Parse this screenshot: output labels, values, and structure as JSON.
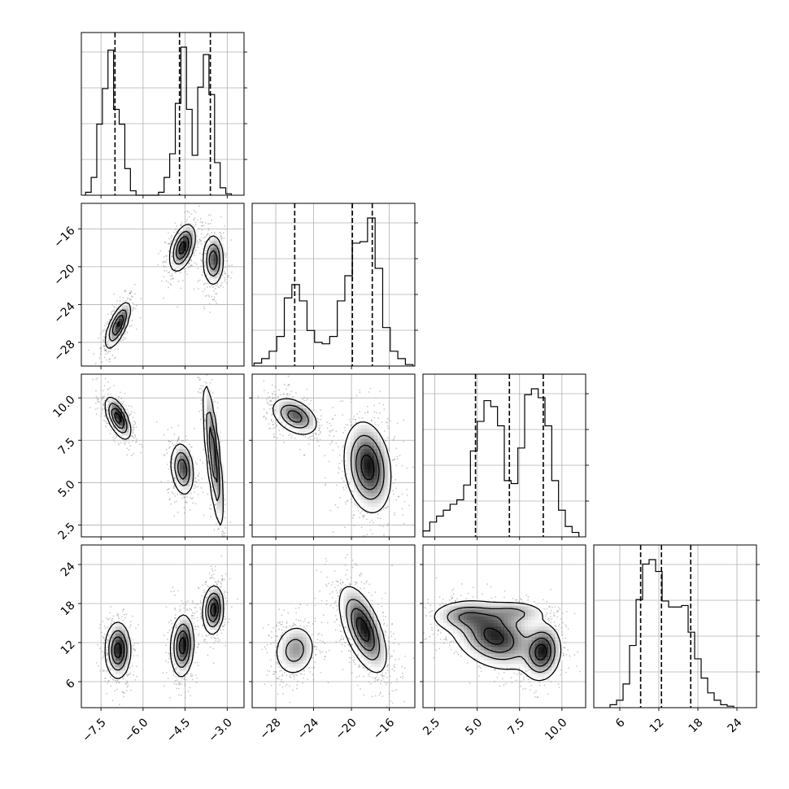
{
  "chart_data": {
    "type": "corner",
    "title": "",
    "params": [
      {
        "ticks": [
          "−7.5",
          "−6.0",
          "−4.5",
          "−3.0"
        ],
        "tick_values": [
          -7.5,
          -6.0,
          -4.5,
          -3.0
        ],
        "range": [
          -8.2,
          -2.4
        ],
        "quantiles": [
          -7.0,
          -4.7,
          -3.6
        ]
      },
      {
        "ticks": [
          "−28",
          "−24",
          "−20",
          "−16"
        ],
        "tick_values": [
          -28,
          -24,
          -20,
          -16
        ],
        "range": [
          -30.5,
          -13.3
        ],
        "quantiles": [
          -26.0,
          -19.9,
          -17.8
        ]
      },
      {
        "ticks": [
          "2.5",
          "5.0",
          "7.5",
          "10.0"
        ],
        "tick_values": [
          2.5,
          5.0,
          7.5,
          10.0
        ],
        "range": [
          1.8,
          11.4
        ],
        "quantiles": [
          4.9,
          6.9,
          8.9
        ]
      },
      {
        "ticks": [
          "6",
          "12",
          "18",
          "24"
        ],
        "tick_values": [
          6,
          12,
          18,
          24
        ],
        "range": [
          2.0,
          27.0
        ],
        "quantiles": [
          9.2,
          12.4,
          16.9
        ]
      }
    ],
    "histograms": [
      [
        {
          "x": -7.95,
          "y": 0.02
        },
        {
          "x": -7.75,
          "y": 0.12
        },
        {
          "x": -7.55,
          "y": 0.48
        },
        {
          "x": -7.35,
          "y": 0.72
        },
        {
          "x": -7.15,
          "y": 0.98
        },
        {
          "x": -6.95,
          "y": 0.58
        },
        {
          "x": -6.75,
          "y": 0.48
        },
        {
          "x": -6.55,
          "y": 0.18
        },
        {
          "x": -6.35,
          "y": 0.03
        },
        {
          "x": -6.15,
          "y": 0.0
        },
        {
          "x": -5.95,
          "y": 0.0
        },
        {
          "x": -5.75,
          "y": 0.0
        },
        {
          "x": -5.55,
          "y": 0.0
        },
        {
          "x": -5.35,
          "y": 0.02
        },
        {
          "x": -5.15,
          "y": 0.12
        },
        {
          "x": -4.95,
          "y": 0.28
        },
        {
          "x": -4.75,
          "y": 0.62
        },
        {
          "x": -4.55,
          "y": 1.0
        },
        {
          "x": -4.35,
          "y": 0.58
        },
        {
          "x": -4.15,
          "y": 0.27
        },
        {
          "x": -3.95,
          "y": 0.73
        },
        {
          "x": -3.75,
          "y": 0.95
        },
        {
          "x": -3.55,
          "y": 0.68
        },
        {
          "x": -3.35,
          "y": 0.22
        },
        {
          "x": -3.15,
          "y": 0.05
        },
        {
          "x": -2.95,
          "y": 0.01
        }
      ],
      [
        {
          "x": -29.9,
          "y": 0.02
        },
        {
          "x": -29.1,
          "y": 0.05
        },
        {
          "x": -28.3,
          "y": 0.1
        },
        {
          "x": -27.5,
          "y": 0.2
        },
        {
          "x": -26.7,
          "y": 0.46
        },
        {
          "x": -25.9,
          "y": 0.55
        },
        {
          "x": -25.1,
          "y": 0.44
        },
        {
          "x": -24.3,
          "y": 0.24
        },
        {
          "x": -23.5,
          "y": 0.16
        },
        {
          "x": -22.7,
          "y": 0.15
        },
        {
          "x": -21.9,
          "y": 0.2
        },
        {
          "x": -21.1,
          "y": 0.44
        },
        {
          "x": -20.3,
          "y": 0.61
        },
        {
          "x": -19.5,
          "y": 0.83
        },
        {
          "x": -18.7,
          "y": 0.84
        },
        {
          "x": -17.9,
          "y": 1.0
        },
        {
          "x": -17.1,
          "y": 0.66
        },
        {
          "x": -16.3,
          "y": 0.26
        },
        {
          "x": -15.5,
          "y": 0.1
        },
        {
          "x": -14.7,
          "y": 0.05
        },
        {
          "x": -13.9,
          "y": 0.01
        }
      ],
      [
        {
          "x": 2.0,
          "y": 0.04
        },
        {
          "x": 2.4,
          "y": 0.1
        },
        {
          "x": 2.8,
          "y": 0.14
        },
        {
          "x": 3.2,
          "y": 0.18
        },
        {
          "x": 3.6,
          "y": 0.22
        },
        {
          "x": 4.0,
          "y": 0.25
        },
        {
          "x": 4.4,
          "y": 0.35
        },
        {
          "x": 4.8,
          "y": 0.58
        },
        {
          "x": 5.2,
          "y": 0.78
        },
        {
          "x": 5.6,
          "y": 0.92
        },
        {
          "x": 6.0,
          "y": 0.88
        },
        {
          "x": 6.4,
          "y": 0.75
        },
        {
          "x": 6.8,
          "y": 0.38
        },
        {
          "x": 7.2,
          "y": 0.36
        },
        {
          "x": 7.6,
          "y": 0.6
        },
        {
          "x": 8.0,
          "y": 0.96
        },
        {
          "x": 8.4,
          "y": 1.0
        },
        {
          "x": 8.8,
          "y": 0.94
        },
        {
          "x": 9.2,
          "y": 0.75
        },
        {
          "x": 9.6,
          "y": 0.38
        },
        {
          "x": 10.0,
          "y": 0.18
        },
        {
          "x": 10.4,
          "y": 0.07
        },
        {
          "x": 10.8,
          "y": 0.03
        }
      ],
      [
        {
          "x": 5.0,
          "y": 0.02
        },
        {
          "x": 6.0,
          "y": 0.05
        },
        {
          "x": 7.0,
          "y": 0.16
        },
        {
          "x": 8.0,
          "y": 0.42
        },
        {
          "x": 9.0,
          "y": 0.73
        },
        {
          "x": 10.0,
          "y": 0.97
        },
        {
          "x": 11.0,
          "y": 1.0
        },
        {
          "x": 12.0,
          "y": 0.92
        },
        {
          "x": 13.0,
          "y": 0.72
        },
        {
          "x": 14.0,
          "y": 0.68
        },
        {
          "x": 15.0,
          "y": 0.68
        },
        {
          "x": 16.0,
          "y": 0.69
        },
        {
          "x": 17.0,
          "y": 0.51
        },
        {
          "x": 18.0,
          "y": 0.33
        },
        {
          "x": 19.0,
          "y": 0.2
        },
        {
          "x": 20.0,
          "y": 0.1
        },
        {
          "x": 21.0,
          "y": 0.05
        },
        {
          "x": 22.0,
          "y": 0.02
        },
        {
          "x": 23.0,
          "y": 0.01
        }
      ]
    ],
    "blobs": [
      {
        "row": 1,
        "col": 0,
        "clusters": [
          {
            "cx": -6.9,
            "cy": -26.2,
            "sx": 0.22,
            "sy": 1.2,
            "rho": 0.7,
            "w": 1.0
          },
          {
            "cx": -4.6,
            "cy": -18.0,
            "sx": 0.22,
            "sy": 1.2,
            "rho": 0.45,
            "w": 1.1
          },
          {
            "cx": -3.5,
            "cy": -19.3,
            "sx": 0.18,
            "sy": 1.3,
            "rho": 0.0,
            "w": 0.9
          }
        ]
      },
      {
        "row": 2,
        "col": 0,
        "clusters": [
          {
            "cx": -6.9,
            "cy": 8.8,
            "sx": 0.22,
            "sy": 0.6,
            "rho": -0.6,
            "w": 1.1
          },
          {
            "cx": -4.6,
            "cy": 5.8,
            "sx": 0.2,
            "sy": 0.75,
            "rho": -0.2,
            "w": 0.9
          },
          {
            "cx": -3.5,
            "cy": 6.6,
            "sx": 0.18,
            "sy": 2.1,
            "rho": -0.75,
            "w": 0.9
          }
        ]
      },
      {
        "row": 2,
        "col": 1,
        "clusters": [
          {
            "cx": -26.0,
            "cy": 8.9,
            "sx": 1.2,
            "sy": 0.55,
            "rho": -0.4,
            "w": 1.1
          },
          {
            "cx": -18.3,
            "cy": 5.9,
            "sx": 1.2,
            "sy": 1.3,
            "rho": -0.2,
            "w": 1.5
          }
        ]
      },
      {
        "row": 3,
        "col": 0,
        "clusters": [
          {
            "cx": -6.9,
            "cy": 10.8,
            "sx": 0.22,
            "sy": 2.1,
            "rho": 0.0,
            "w": 1.0
          },
          {
            "cx": -4.6,
            "cy": 11.5,
            "sx": 0.2,
            "sy": 2.3,
            "rho": 0.1,
            "w": 1.0
          },
          {
            "cx": -3.5,
            "cy": 17.0,
            "sx": 0.18,
            "sy": 1.8,
            "rho": 0.1,
            "w": 1.0
          }
        ]
      },
      {
        "row": 3,
        "col": 1,
        "clusters": [
          {
            "cx": -26.0,
            "cy": 10.8,
            "sx": 1.1,
            "sy": 2.0,
            "rho": 0.1,
            "w": 1.0
          },
          {
            "cx": -18.8,
            "cy": 14.0,
            "sx": 1.2,
            "sy": 3.2,
            "rho": -0.6,
            "w": 2.0
          }
        ]
      },
      {
        "row": 3,
        "col": 2,
        "clusters": [
          {
            "cx": 6.0,
            "cy": 12.8,
            "sx": 1.2,
            "sy": 2.4,
            "rho": -0.3,
            "w": 1.0
          },
          {
            "cx": 8.8,
            "cy": 10.5,
            "sx": 0.55,
            "sy": 2.1,
            "rho": 0.1,
            "w": 1.0
          },
          {
            "cx": 4.2,
            "cy": 16.0,
            "sx": 1.0,
            "sy": 1.2,
            "rho": 0.0,
            "w": 0.5
          },
          {
            "cx": 7.2,
            "cy": 16.5,
            "sx": 1.0,
            "sy": 1.0,
            "rho": 0.0,
            "w": 0.4
          }
        ]
      }
    ]
  }
}
